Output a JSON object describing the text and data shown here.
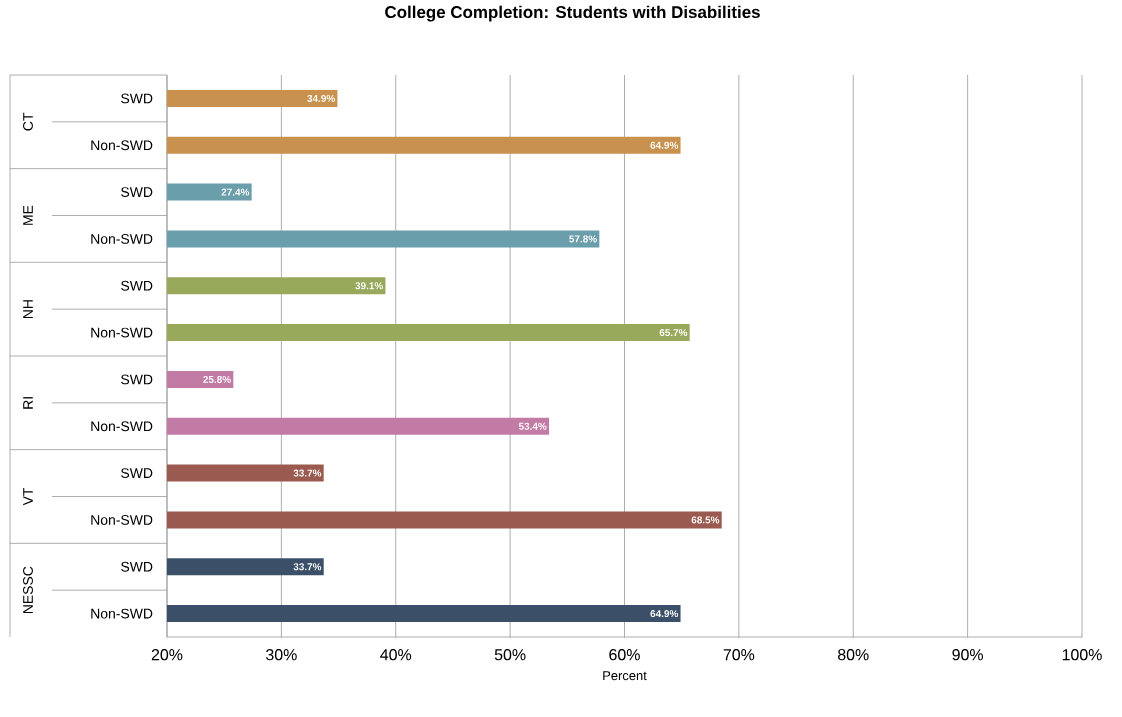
{
  "chart_data": {
    "type": "bar",
    "orientation": "horizontal",
    "title": "College Completion: Students with Disabilities",
    "xlabel": "Percent",
    "categories": [
      "SWD",
      "Non-SWD",
      "SWD",
      "Non-SWD",
      "SWD",
      "Non-SWD",
      "SWD",
      "Non-SWD",
      "SWD",
      "Non-SWD",
      "SWD",
      "Non-SWD"
    ],
    "values": [
      34.9,
      64.9,
      27.4,
      57.8,
      39.1,
      65.7,
      25.8,
      53.4,
      33.7,
      68.5,
      33.7,
      64.9
    ],
    "value_labels": [
      "34.9%",
      "64.9%",
      "27.4%",
      "57.8%",
      "39.1%",
      "65.7%",
      "25.8%",
      "53.4%",
      "33.7%",
      "68.5%",
      "33.7%",
      "64.9%"
    ],
    "colors": [
      "#c8924e",
      "#c8924e",
      "#6b9eab",
      "#6b9eab",
      "#98a95c",
      "#98a95c",
      "#c27ba5",
      "#c27ba5",
      "#9b5a4f",
      "#9b5a4f",
      "#3b5068",
      "#3b5068"
    ],
    "annotations": [
      "CT",
      "ME",
      "NH",
      "RI",
      "VT",
      "NESSC"
    ],
    "xlim": [
      20,
      100
    ],
    "xticks": [
      {
        "value": 20,
        "label": "20%"
      },
      {
        "value": 30,
        "label": "30%"
      },
      {
        "value": 40,
        "label": "40%"
      },
      {
        "value": 50,
        "label": "50%"
      },
      {
        "value": 60,
        "label": "60%"
      },
      {
        "value": 70,
        "label": "70%"
      },
      {
        "value": 80,
        "label": "80%"
      },
      {
        "value": 90,
        "label": "90%"
      },
      {
        "value": 100,
        "label": "100%"
      }
    ],
    "grid": "x"
  }
}
